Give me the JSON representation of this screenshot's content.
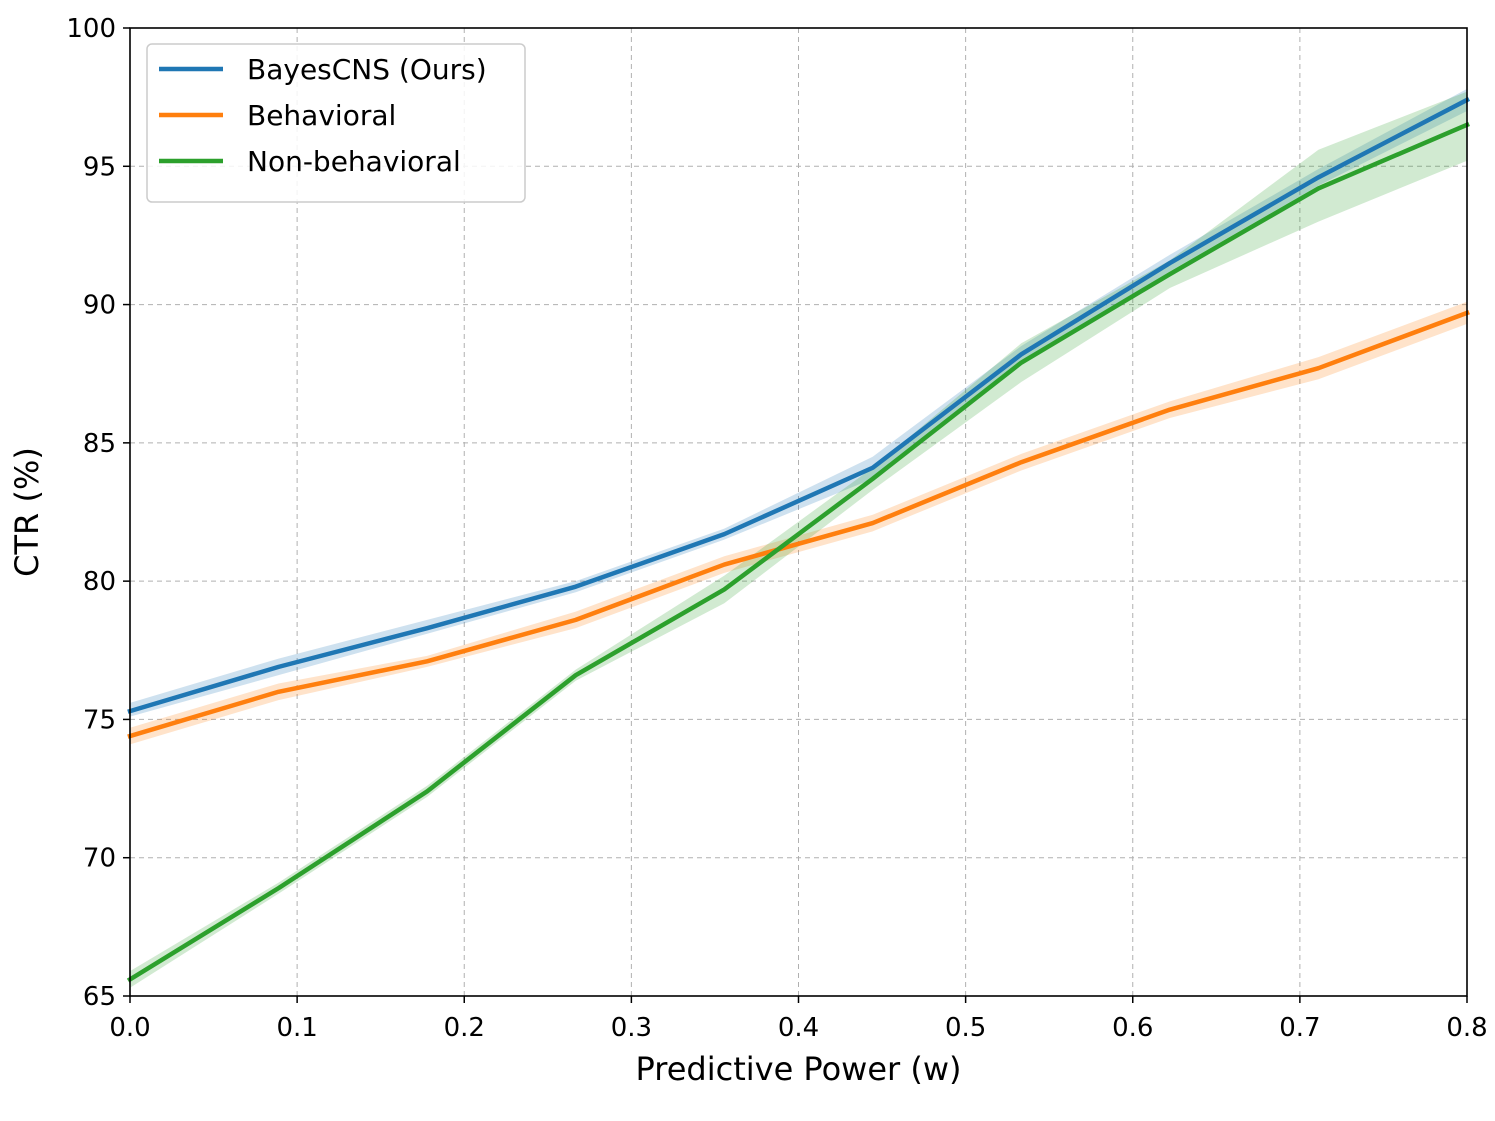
{
  "chart_data": {
    "type": "line",
    "title": "",
    "xlabel": "Predictive Power (w)",
    "ylabel": "CTR (%)",
    "xlim": [
      0.0,
      0.8
    ],
    "ylim": [
      65,
      100
    ],
    "xticks": [
      0.0,
      0.1,
      0.2,
      0.3,
      0.4,
      0.5,
      0.6,
      0.7,
      0.8
    ],
    "xtick_labels": [
      "0.0",
      "0.1",
      "0.2",
      "0.3",
      "0.4",
      "0.5",
      "0.6",
      "0.7",
      "0.8"
    ],
    "yticks": [
      65,
      70,
      75,
      80,
      85,
      90,
      95,
      100
    ],
    "ytick_labels": [
      "65",
      "70",
      "75",
      "80",
      "85",
      "90",
      "95",
      "100"
    ],
    "grid": true,
    "legend_position": "top-left",
    "x": [
      0.0,
      0.0889,
      0.1778,
      0.2667,
      0.3556,
      0.4444,
      0.5333,
      0.6222,
      0.7111,
      0.8
    ],
    "series": [
      {
        "name": "BayesCNS (Ours)",
        "color": "#1f77b4",
        "values": [
          75.3,
          76.9,
          78.3,
          79.8,
          81.7,
          84.1,
          88.2,
          91.5,
          94.6,
          97.4
        ],
        "lower": [
          75.1,
          76.6,
          78.1,
          79.6,
          81.5,
          83.7,
          87.9,
          91.2,
          94.3,
          97.0
        ],
        "upper": [
          75.6,
          77.2,
          78.6,
          80.0,
          81.9,
          84.5,
          88.5,
          91.8,
          94.9,
          97.8
        ]
      },
      {
        "name": "Behavioral",
        "color": "#ff7f0e",
        "values": [
          74.4,
          76.0,
          77.1,
          78.6,
          80.6,
          82.1,
          84.3,
          86.2,
          87.7,
          89.7
        ],
        "lower": [
          74.1,
          75.7,
          76.9,
          78.3,
          80.3,
          81.8,
          84.0,
          85.9,
          87.3,
          89.3
        ],
        "upper": [
          74.7,
          76.3,
          77.3,
          78.9,
          80.9,
          82.4,
          84.6,
          86.5,
          88.1,
          90.1
        ]
      },
      {
        "name": "Non-behavioral",
        "color": "#2ca02c",
        "values": [
          65.6,
          68.9,
          72.4,
          76.6,
          79.7,
          83.7,
          87.9,
          91.1,
          94.2,
          96.5
        ],
        "lower": [
          65.3,
          68.7,
          72.2,
          76.4,
          79.2,
          83.3,
          87.2,
          90.6,
          93.0,
          95.2
        ],
        "upper": [
          65.9,
          69.1,
          72.6,
          76.8,
          80.2,
          84.1,
          88.6,
          91.6,
          95.6,
          97.7
        ]
      }
    ]
  }
}
